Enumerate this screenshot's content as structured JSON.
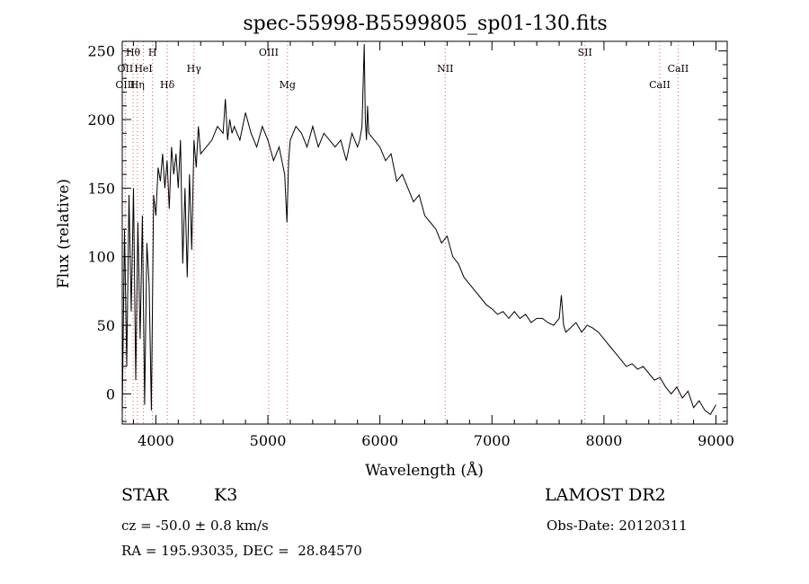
{
  "chart_data": {
    "type": "line",
    "title": "spec-55998-B5599805_sp01-130.fits",
    "xlabel": "Wavelength (Å)",
    "ylabel": "Flux (relative)",
    "xlim": [
      3700,
      9100
    ],
    "ylim": [
      -22,
      257
    ],
    "x_ticks": [
      4000,
      5000,
      6000,
      7000,
      8000,
      9000
    ],
    "x_tick_labels": [
      "4000",
      "5000",
      "6000",
      "7000",
      "8000",
      "9000"
    ],
    "y_ticks": [
      0,
      50,
      100,
      150,
      200,
      250
    ],
    "y_tick_labels": [
      "0",
      "50",
      "100",
      "150",
      "200",
      "250"
    ],
    "grid": false,
    "line_color": "#000000",
    "marker_line_color": "#e06060",
    "spectrum": {
      "x": [
        3700,
        3720,
        3740,
        3760,
        3780,
        3800,
        3820,
        3840,
        3860,
        3880,
        3900,
        3920,
        3940,
        3960,
        3980,
        4000,
        4020,
        4040,
        4060,
        4080,
        4100,
        4120,
        4140,
        4160,
        4180,
        4200,
        4220,
        4240,
        4260,
        4280,
        4300,
        4320,
        4340,
        4360,
        4380,
        4400,
        4450,
        4500,
        4550,
        4600,
        4620,
        4640,
        4660,
        4680,
        4700,
        4750,
        4800,
        4850,
        4900,
        4950,
        5000,
        5050,
        5100,
        5150,
        5170,
        5185,
        5200,
        5250,
        5300,
        5350,
        5400,
        5450,
        5500,
        5550,
        5600,
        5650,
        5700,
        5750,
        5800,
        5820,
        5840,
        5860,
        5870,
        5880,
        5890,
        5900,
        5950,
        6000,
        6050,
        6100,
        6150,
        6200,
        6250,
        6300,
        6350,
        6400,
        6450,
        6500,
        6550,
        6600,
        6650,
        6700,
        6750,
        6800,
        6850,
        6900,
        6950,
        7000,
        7050,
        7100,
        7150,
        7200,
        7250,
        7300,
        7350,
        7400,
        7450,
        7500,
        7550,
        7600,
        7620,
        7640,
        7660,
        7700,
        7750,
        7800,
        7850,
        7900,
        7950,
        8000,
        8050,
        8100,
        8150,
        8200,
        8250,
        8300,
        8350,
        8400,
        8450,
        8500,
        8550,
        8600,
        8650,
        8700,
        8750,
        8800,
        8850,
        8900,
        8950,
        9000
      ],
      "y": [
        -15,
        120,
        20,
        145,
        60,
        150,
        10,
        125,
        40,
        130,
        -8,
        110,
        80,
        -12,
        145,
        130,
        165,
        155,
        175,
        150,
        170,
        135,
        180,
        160,
        175,
        150,
        185,
        95,
        150,
        85,
        160,
        105,
        185,
        165,
        195,
        175,
        180,
        185,
        195,
        190,
        215,
        185,
        200,
        190,
        195,
        185,
        205,
        190,
        180,
        195,
        185,
        170,
        180,
        160,
        125,
        170,
        185,
        195,
        190,
        180,
        195,
        180,
        190,
        185,
        180,
        185,
        170,
        190,
        180,
        185,
        195,
        255,
        200,
        185,
        210,
        190,
        185,
        180,
        170,
        175,
        155,
        160,
        150,
        140,
        145,
        130,
        125,
        120,
        110,
        115,
        100,
        95,
        85,
        80,
        75,
        70,
        65,
        62,
        58,
        60,
        55,
        60,
        55,
        58,
        52,
        55,
        55,
        52,
        50,
        55,
        72,
        50,
        45,
        48,
        52,
        45,
        50,
        48,
        45,
        40,
        35,
        30,
        25,
        20,
        22,
        18,
        20,
        15,
        10,
        12,
        5,
        0,
        5,
        -3,
        2,
        -10,
        -5,
        -12,
        -15,
        -8
      ]
    },
    "line_markers": [
      {
        "label": "Hθ",
        "x": 3797,
        "row": 0
      },
      {
        "label": "H",
        "x": 3970,
        "row": 0
      },
      {
        "label": "OII",
        "x": 3727,
        "row": 1
      },
      {
        "label": "HeI",
        "x": 3889,
        "row": 1
      },
      {
        "label": "OIII",
        "x": 3727,
        "row": 2
      },
      {
        "label": "Hη",
        "x": 3835,
        "row": 2
      },
      {
        "label": "Hδ",
        "x": 4102,
        "row": 2
      },
      {
        "label": "Hγ",
        "x": 4340,
        "row": 1
      },
      {
        "label": "OIII",
        "x": 5007,
        "row": 0
      },
      {
        "label": "Mg",
        "x": 5175,
        "row": 2
      },
      {
        "label": "NII",
        "x": 6583,
        "row": 1
      },
      {
        "label": "SII",
        "x": 7830,
        "row": 0
      },
      {
        "label": "CaII",
        "x": 8662,
        "row": 1
      },
      {
        "label": "CaII",
        "x": 8498,
        "row": 2
      }
    ]
  },
  "info": {
    "object_class": "STAR",
    "subclass": "K3",
    "survey": "LAMOST DR2",
    "cz": "cz = -50.0 ± 0.8 km/s",
    "obs_date": "Obs-Date: 20120311",
    "coords": "RA = 195.93035, DEC =  28.84570"
  }
}
